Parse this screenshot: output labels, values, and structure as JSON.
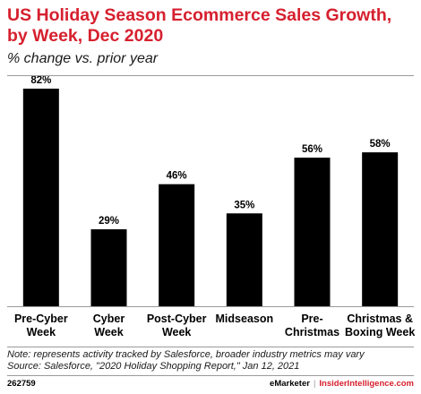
{
  "header": {
    "title": "US Holiday Season Ecommerce Sales Growth, by Week, Dec 2020",
    "subtitle": "% change vs. prior year"
  },
  "chart_data": {
    "type": "bar",
    "title": "US Holiday Season Ecommerce Sales Growth, by Week, Dec 2020",
    "subtitle": "% change vs. prior year",
    "categories": [
      [
        "Pre-Cyber",
        "Week"
      ],
      [
        "Cyber",
        "Week"
      ],
      [
        "Post-Cyber",
        "Week"
      ],
      [
        "Midseason"
      ],
      [
        "Pre-",
        "Christmas"
      ],
      [
        "Christmas &",
        "Boxing Week"
      ]
    ],
    "values": [
      82,
      29,
      46,
      35,
      56,
      58
    ],
    "value_labels": [
      "82%",
      "29%",
      "46%",
      "35%",
      "56%",
      "58%"
    ],
    "ylim": [
      0,
      82
    ],
    "grid": false,
    "bar_color": "#000000"
  },
  "footer": {
    "note": "Note: represents activity tracked by Salesforce, broader industry metrics may vary",
    "source": "Source: Salesforce, \"2020 Holiday Shopping Report,\" Jan 12, 2021",
    "chart_id": "262759",
    "brand_one": "eMarketer",
    "separator": "|",
    "brand_two": "InsiderIntelligence.com"
  },
  "colors": {
    "title": "#d6202e",
    "bars": "#000000"
  }
}
